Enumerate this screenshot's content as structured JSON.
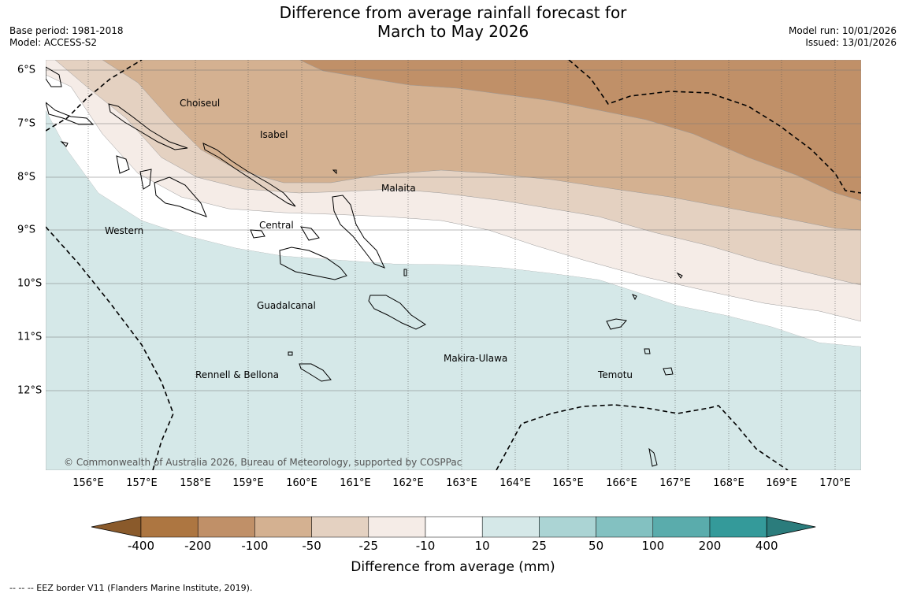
{
  "title_line1": "Difference from average rainfall forecast for",
  "title_line2": "March to May 2026",
  "base_period": "Base period: 1981-2018",
  "model": "Model: ACCESS-S2",
  "model_run": "Model run: 10/01/2026",
  "issued": "Issued: 13/01/2026",
  "longitudes": [
    "156°E",
    "157°E",
    "158°E",
    "159°E",
    "160°E",
    "161°E",
    "162°E",
    "163°E",
    "164°E",
    "165°E",
    "166°E",
    "167°E",
    "168°E",
    "169°E",
    "170°E"
  ],
  "latitudes": [
    "6°S",
    "7°S",
    "8°S",
    "9°S",
    "10°S",
    "11°S",
    "12°S"
  ],
  "regions": [
    "Choiseul",
    "Isabel",
    "Malaita",
    "Central",
    "Western",
    "Guadalcanal",
    "Makira-Ulawa",
    "Rennell & Bellona",
    "Temotu"
  ],
  "copyright": "© Commonwealth of Australia 2026, Bureau of Meteorology, supported by COSPPac",
  "colorbar": {
    "labels": [
      "-400",
      "-200",
      "-100",
      "-50",
      "-25",
      "-10",
      "10",
      "25",
      "50",
      "100",
      "200",
      "400"
    ],
    "colors": [
      "#8a5a2b",
      "#ad7641",
      "#c09068",
      "#d4b191",
      "#e4d1c1",
      "#f5ece7",
      "#ffffff",
      "#d5e8e8",
      "#abd4d4",
      "#83c1c1",
      "#5aacac",
      "#349a9a",
      "#2b7c7c"
    ],
    "title": "Difference from average (mm)"
  },
  "eez_note": "--  --  -- EEZ border V11 (Flanders Marine Institute, 2019).",
  "map_colors": {
    "bg": "#ffffff",
    "coast": "#000000",
    "grid": "#555555"
  }
}
